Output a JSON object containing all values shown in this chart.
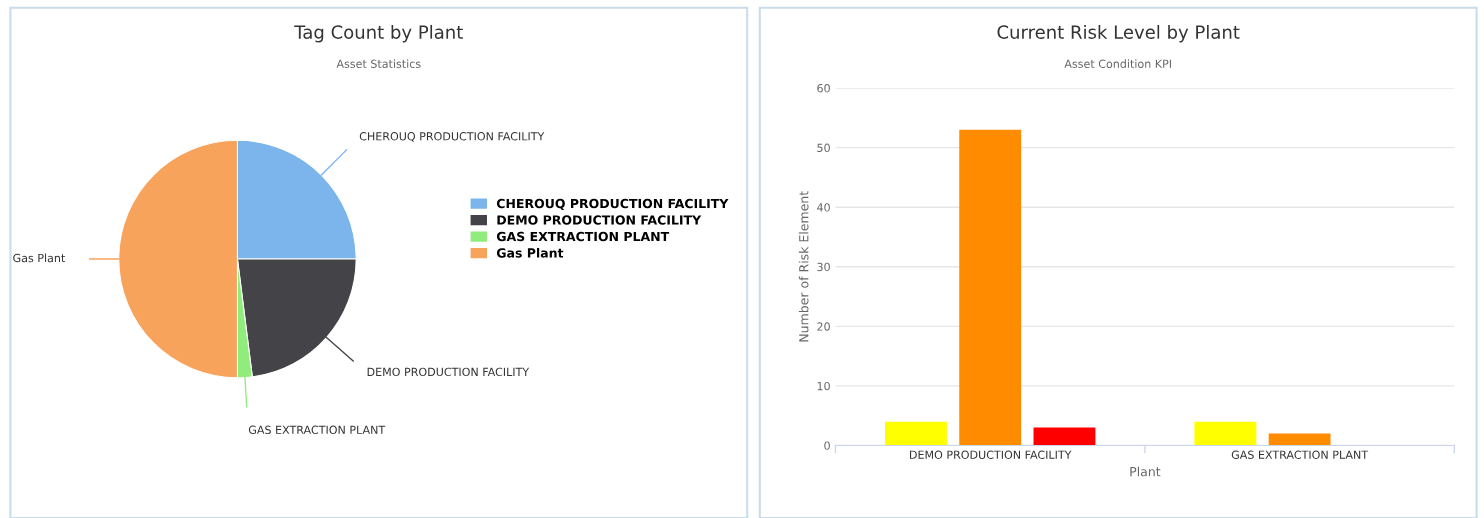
{
  "chart_data": [
    {
      "type": "pie",
      "title": "Tag Count by Plant",
      "subtitle": "Asset Statistics",
      "categories": [
        "CHEROUQ PRODUCTION FACILITY",
        "DEMO PRODUCTION FACILITY",
        "GAS EXTRACTION PLANT",
        "Gas Plant"
      ],
      "values": [
        25,
        23,
        2,
        50
      ],
      "colors": [
        "#7cb5ec",
        "#434348",
        "#90ed7d",
        "#f7a35c"
      ],
      "legend": "right"
    },
    {
      "type": "bar",
      "title": "Current Risk Level by Plant",
      "subtitle": "Asset Condition KPI",
      "xlabel": "Plant",
      "ylabel": "Number of Risk Element",
      "categories": [
        "DEMO PRODUCTION FACILITY",
        "GAS EXTRACTION PLANT"
      ],
      "series": [
        {
          "color": "#ffff00",
          "values": [
            4,
            4
          ]
        },
        {
          "color": "#ff8c00",
          "values": [
            53,
            2
          ]
        },
        {
          "color": "#ff0000",
          "values": [
            3,
            null
          ]
        }
      ],
      "ylim": [
        0,
        60
      ],
      "yticks": [
        0,
        10,
        20,
        30,
        40,
        50,
        60
      ],
      "grid": "y",
      "legend": false
    }
  ]
}
